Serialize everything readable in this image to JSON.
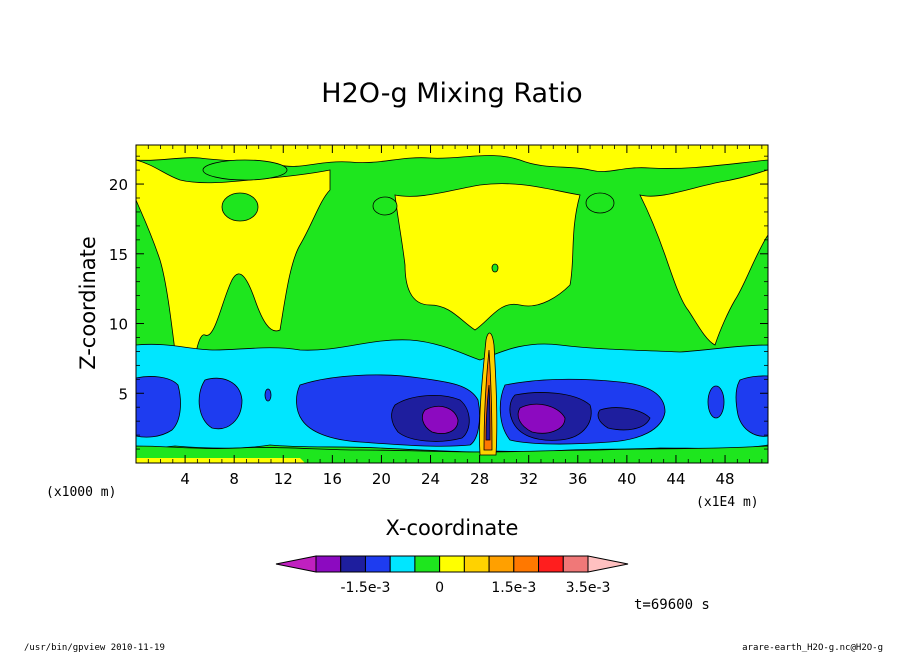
{
  "chart_data": {
    "type": "contour",
    "title": "H2O-g Mixing Ratio",
    "xlabel": "X-coordinate",
    "ylabel": "Z-coordinate",
    "x_unit_left": "(x1000 m)",
    "x_unit_right": "(x1E4 m)",
    "xlim": [
      0,
      51.5
    ],
    "ylim": [
      0,
      22.8
    ],
    "x_ticks": [
      4,
      8,
      12,
      16,
      20,
      24,
      28,
      32,
      36,
      40,
      44,
      48
    ],
    "y_ticks": [
      5,
      10,
      15,
      20
    ],
    "x_tick_labels": [
      "4",
      "8",
      "12",
      "16",
      "20",
      "24",
      "28",
      "32",
      "36",
      "40",
      "44",
      "48"
    ],
    "y_tick_labels": [
      "5",
      "10",
      "15",
      "20"
    ],
    "grid": false,
    "colorbar": {
      "colors": [
        "#c020c0",
        "#8c0ac0",
        "#1e1e9e",
        "#1e3cf0",
        "#00e6ff",
        "#1ee61e",
        "#ffff00",
        "#ffd200",
        "#ffa000",
        "#ff7800",
        "#ff1e1e",
        "#f07878",
        "#ffc0c0"
      ],
      "tick_labels": [
        "-1.5e-3",
        "0",
        "1.5e-3",
        "3.5e-3"
      ],
      "tick_after_box": [
        2,
        5,
        8,
        11
      ]
    },
    "levels_by_height": [
      {
        "z_range": [
          0,
          0.8
        ],
        "color": "yellow-green"
      },
      {
        "z_range": [
          0.8,
          8.5
        ],
        "color": "negative anomaly (cyan to purple)"
      },
      {
        "z_range": [
          8.5,
          22.8
        ],
        "color": "near zero (green/yellow)"
      }
    ],
    "time_label": "t=69600 s"
  },
  "footer": {
    "left": "/usr/bin/gpview  2010-11-19",
    "right": "arare-earth_H2O-g.nc@H2O-g"
  }
}
